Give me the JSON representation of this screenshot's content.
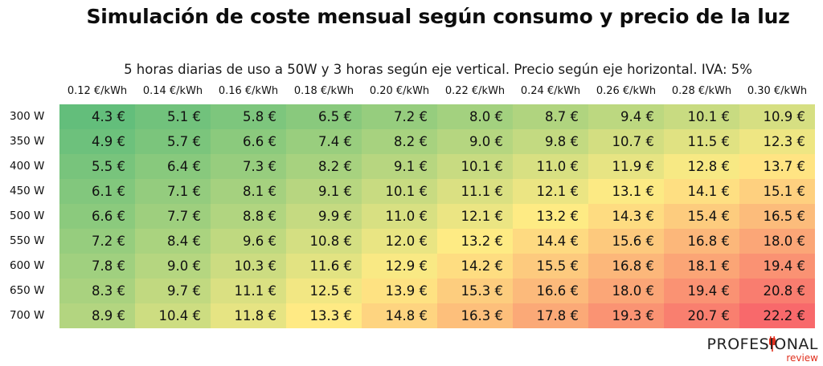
{
  "title": "Simulación de coste mensual según consumo y precio de la luz",
  "subtitle": "5 horas diarias de uso a 50W y 3 horas según eje vertical. Precio según eje horizontal. IVA: 5%",
  "logo": {
    "top": "PROFESIONAL",
    "bottom": "review"
  },
  "colors": {
    "low": "#63be7b",
    "mid": "#ffeb84",
    "high": "#f8696b",
    "logo_accent": "#e0301e"
  },
  "chart_data": {
    "type": "heatmap",
    "title": "Simulación de coste mensual según consumo y precio de la luz",
    "subtitle": "5 horas diarias de uso a 50W y 3 horas según eje vertical. Precio según eje horizontal. IVA: 5%",
    "x": [
      "0.12 €/kWh",
      "0.14 €/kWh",
      "0.16 €/kWh",
      "0.18 €/kWh",
      "0.20 €/kWh",
      "0.22 €/kWh",
      "0.24 €/kWh",
      "0.26 €/kWh",
      "0.28 €/kWh",
      "0.30 €/kWh"
    ],
    "y": [
      "300 W",
      "350 W",
      "400 W",
      "450 W",
      "500 W",
      "550 W",
      "600 W",
      "650 W",
      "700 W"
    ],
    "unit": "€",
    "values": [
      [
        4.3,
        5.1,
        5.8,
        6.5,
        7.2,
        8.0,
        8.7,
        9.4,
        10.1,
        10.9
      ],
      [
        4.9,
        5.7,
        6.6,
        7.4,
        8.2,
        9.0,
        9.8,
        10.7,
        11.5,
        12.3
      ],
      [
        5.5,
        6.4,
        7.3,
        8.2,
        9.1,
        10.1,
        11.0,
        11.9,
        12.8,
        13.7
      ],
      [
        6.1,
        7.1,
        8.1,
        9.1,
        10.1,
        11.1,
        12.1,
        13.1,
        14.1,
        15.1
      ],
      [
        6.6,
        7.7,
        8.8,
        9.9,
        11.0,
        12.1,
        13.2,
        14.3,
        15.4,
        16.5
      ],
      [
        7.2,
        8.4,
        9.6,
        10.8,
        12.0,
        13.2,
        14.4,
        15.6,
        16.8,
        18.0
      ],
      [
        7.8,
        9.0,
        10.3,
        11.6,
        12.9,
        14.2,
        15.5,
        16.8,
        18.1,
        19.4
      ],
      [
        8.3,
        9.7,
        11.1,
        12.5,
        13.9,
        15.3,
        16.6,
        18.0,
        19.4,
        20.8
      ],
      [
        8.9,
        10.4,
        11.8,
        13.3,
        14.8,
        16.3,
        17.8,
        19.3,
        20.7,
        22.2
      ]
    ],
    "color_scale": [
      "#63be7b",
      "#ffeb84",
      "#f8696b"
    ]
  }
}
